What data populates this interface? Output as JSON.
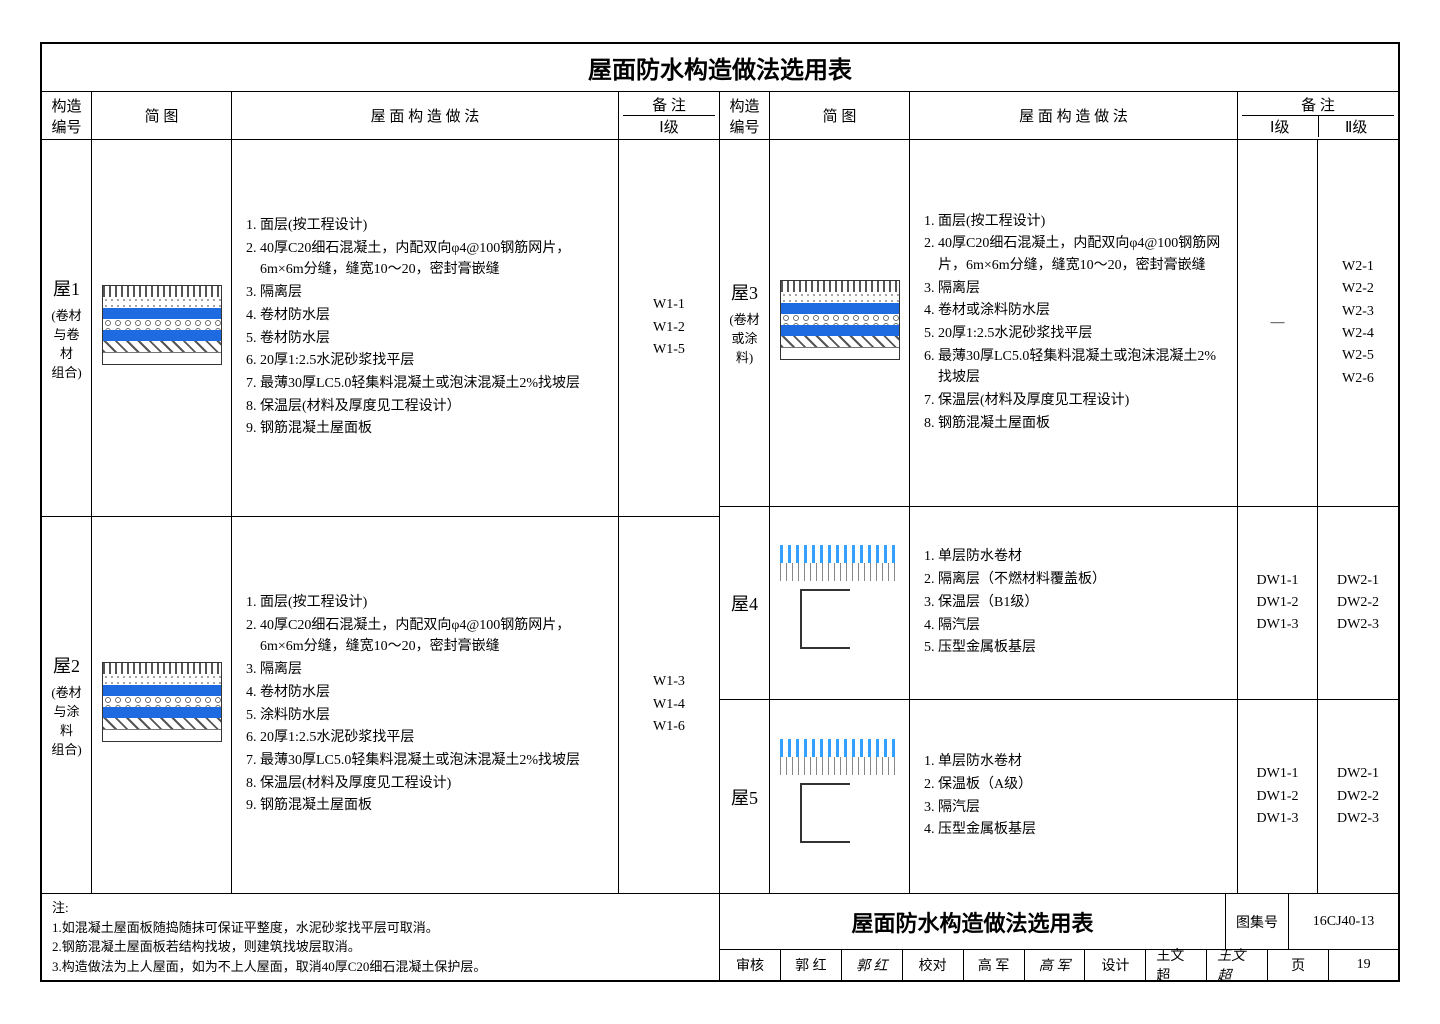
{
  "title": "屋面防水构造做法选用表",
  "columns_left": {
    "id": "构造\n编号",
    "diagram": "简    图",
    "method": "屋 面 构 造 做 法",
    "remarks": "备    注",
    "remarks_sub": [
      "Ⅰ级"
    ]
  },
  "columns_right": {
    "id": "构造\n编号",
    "diagram": "简    图",
    "method": "屋 面 构 造 做 法",
    "remarks": "备    注",
    "remarks_sub": [
      "Ⅰ级",
      "Ⅱ级"
    ]
  },
  "left_rows": [
    {
      "id": "屋1",
      "sub": "(卷材与卷材\n组合)",
      "steps": [
        "面层(按工程设计)",
        "40厚C20细石混凝土，内配双向φ4@100钢筋网片，6m×6m分缝，缝宽10～20，密封膏嵌缝",
        "隔离层",
        "卷材防水层",
        "卷材防水层",
        "20厚1:2.5水泥砂浆找平层",
        "最薄30厚LC5.0轻集料混凝土或泡沫混凝土2%找坡层",
        "保温层(材料及厚度见工程设计）",
        "钢筋混凝土屋面板"
      ],
      "codes_i": [
        "W1-1",
        "W1-2",
        "W1-5"
      ]
    },
    {
      "id": "屋2",
      "sub": "(卷材与涂料\n组合)",
      "steps": [
        "面层(按工程设计)",
        "40厚C20细石混凝土，内配双向φ4@100钢筋网片，6m×6m分缝，缝宽10～20，密封膏嵌缝",
        "隔离层",
        "卷材防水层",
        "涂料防水层",
        "20厚1:2.5水泥砂浆找平层",
        "最薄30厚LC5.0轻集料混凝土或泡沫混凝土2%找坡层",
        "保温层(材料及厚度见工程设计)",
        "钢筋混凝土屋面板"
      ],
      "codes_i": [
        "W1-3",
        "W1-4",
        "W1-6"
      ]
    }
  ],
  "right_rows": [
    {
      "id": "屋3",
      "sub": "(卷材或涂料)",
      "steps": [
        "面层(按工程设计)",
        "40厚C20细石混凝土，内配双向φ4@100钢筋网片，6m×6m分缝，缝宽10～20，密封膏嵌缝",
        "隔离层",
        "卷材或涂料防水层",
        "20厚1:2.5水泥砂浆找平层",
        "最薄30厚LC5.0轻集料混凝土或泡沫混凝土2%找坡层",
        "保温层(材料及厚度见工程设计)",
        "钢筋混凝土屋面板"
      ],
      "codes_i": [
        "—"
      ],
      "codes_ii": [
        "W2-1",
        "W2-2",
        "W2-3",
        "W2-4",
        "W2-5",
        "W2-6"
      ]
    },
    {
      "id": "屋4",
      "sub": "",
      "steps": [
        "单层防水卷材",
        "隔离层（不燃材料覆盖板）",
        "保温层（B1级）",
        "隔汽层",
        "压型金属板基层"
      ],
      "codes_i": [
        "DW1-1",
        "DW1-2",
        "DW1-3"
      ],
      "codes_ii": [
        "DW2-1",
        "DW2-2",
        "DW2-3"
      ]
    },
    {
      "id": "屋5",
      "sub": "",
      "steps": [
        "单层防水卷材",
        "保温板（A级）",
        "隔汽层",
        "压型金属板基层"
      ],
      "codes_i": [
        "DW1-1",
        "DW1-2",
        "DW1-3"
      ],
      "codes_ii": [
        "DW2-1",
        "DW2-2",
        "DW2-3"
      ]
    }
  ],
  "notes_label": "注:",
  "notes": [
    "1.如混凝土屋面板随捣随抹可保证平整度，水泥砂浆找平层可取消。",
    "2.钢筋混凝土屋面板若结构找坡，则建筑找坡层取消。",
    "3.构造做法为上人屋面，如为不上人屋面，取消40厚C20细石混凝土保护层。"
  ],
  "footer_title": "屋面防水构造做法选用表",
  "catalog_label": "图集号",
  "catalog_value": "16CJ40-13",
  "page_label": "页",
  "page_value": "19",
  "signoff": [
    {
      "role": "审核",
      "name": "郭 红"
    },
    {
      "role": "校对",
      "name": "高 军"
    },
    {
      "role": "设计",
      "name": "王文超"
    }
  ],
  "colors": {
    "line": "#000000",
    "blue": "#1e6ae0",
    "text": "#000000",
    "bg": "#ffffff"
  }
}
